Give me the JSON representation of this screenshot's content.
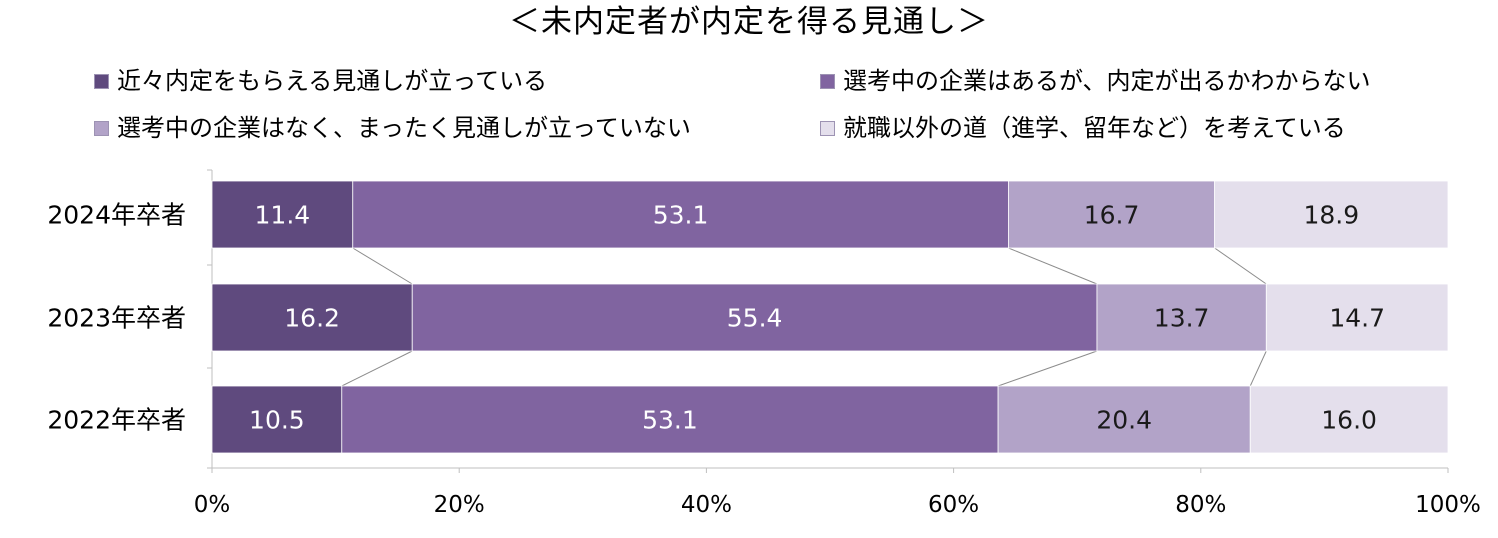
{
  "title": "＜未内定者が内定を得る見通し＞",
  "colors": {
    "s1": "#5f4a7e",
    "s2": "#8064a0",
    "s3": "#b2a3c8",
    "s4": "#e4dfec",
    "axis": "#bfbfbf",
    "connector": "#8c8c8c"
  },
  "chart_data": {
    "type": "bar",
    "orientation": "horizontal-stacked-100",
    "title": "＜未内定者が内定を得る見通し＞",
    "categories": [
      "2024年卒者",
      "2023年卒者",
      "2022年卒者"
    ],
    "series": [
      {
        "name": "近々内定をもらえる見通しが立っている",
        "values": [
          11.4,
          16.2,
          10.5
        ]
      },
      {
        "name": "選考中の企業はあるが、内定が出るかわからない",
        "values": [
          53.1,
          55.4,
          53.1
        ]
      },
      {
        "name": "選考中の企業はなく、まったく見通しが立っていない",
        "values": [
          16.7,
          13.7,
          20.4
        ]
      },
      {
        "name": "就職以外の道（進学、留年など）を考えている",
        "values": [
          18.9,
          14.7,
          16.0
        ]
      }
    ],
    "value_labels": [
      [
        "11.4",
        "53.1",
        "16.7",
        "18.9"
      ],
      [
        "16.2",
        "55.4",
        "13.7",
        "14.7"
      ],
      [
        "10.5",
        "53.1",
        "20.4",
        "16.0"
      ]
    ],
    "xlim": [
      0,
      100
    ],
    "x_ticks": [
      "0%",
      "20%",
      "40%",
      "60%",
      "80%",
      "100%"
    ],
    "legend": "top",
    "series_lines": true
  }
}
